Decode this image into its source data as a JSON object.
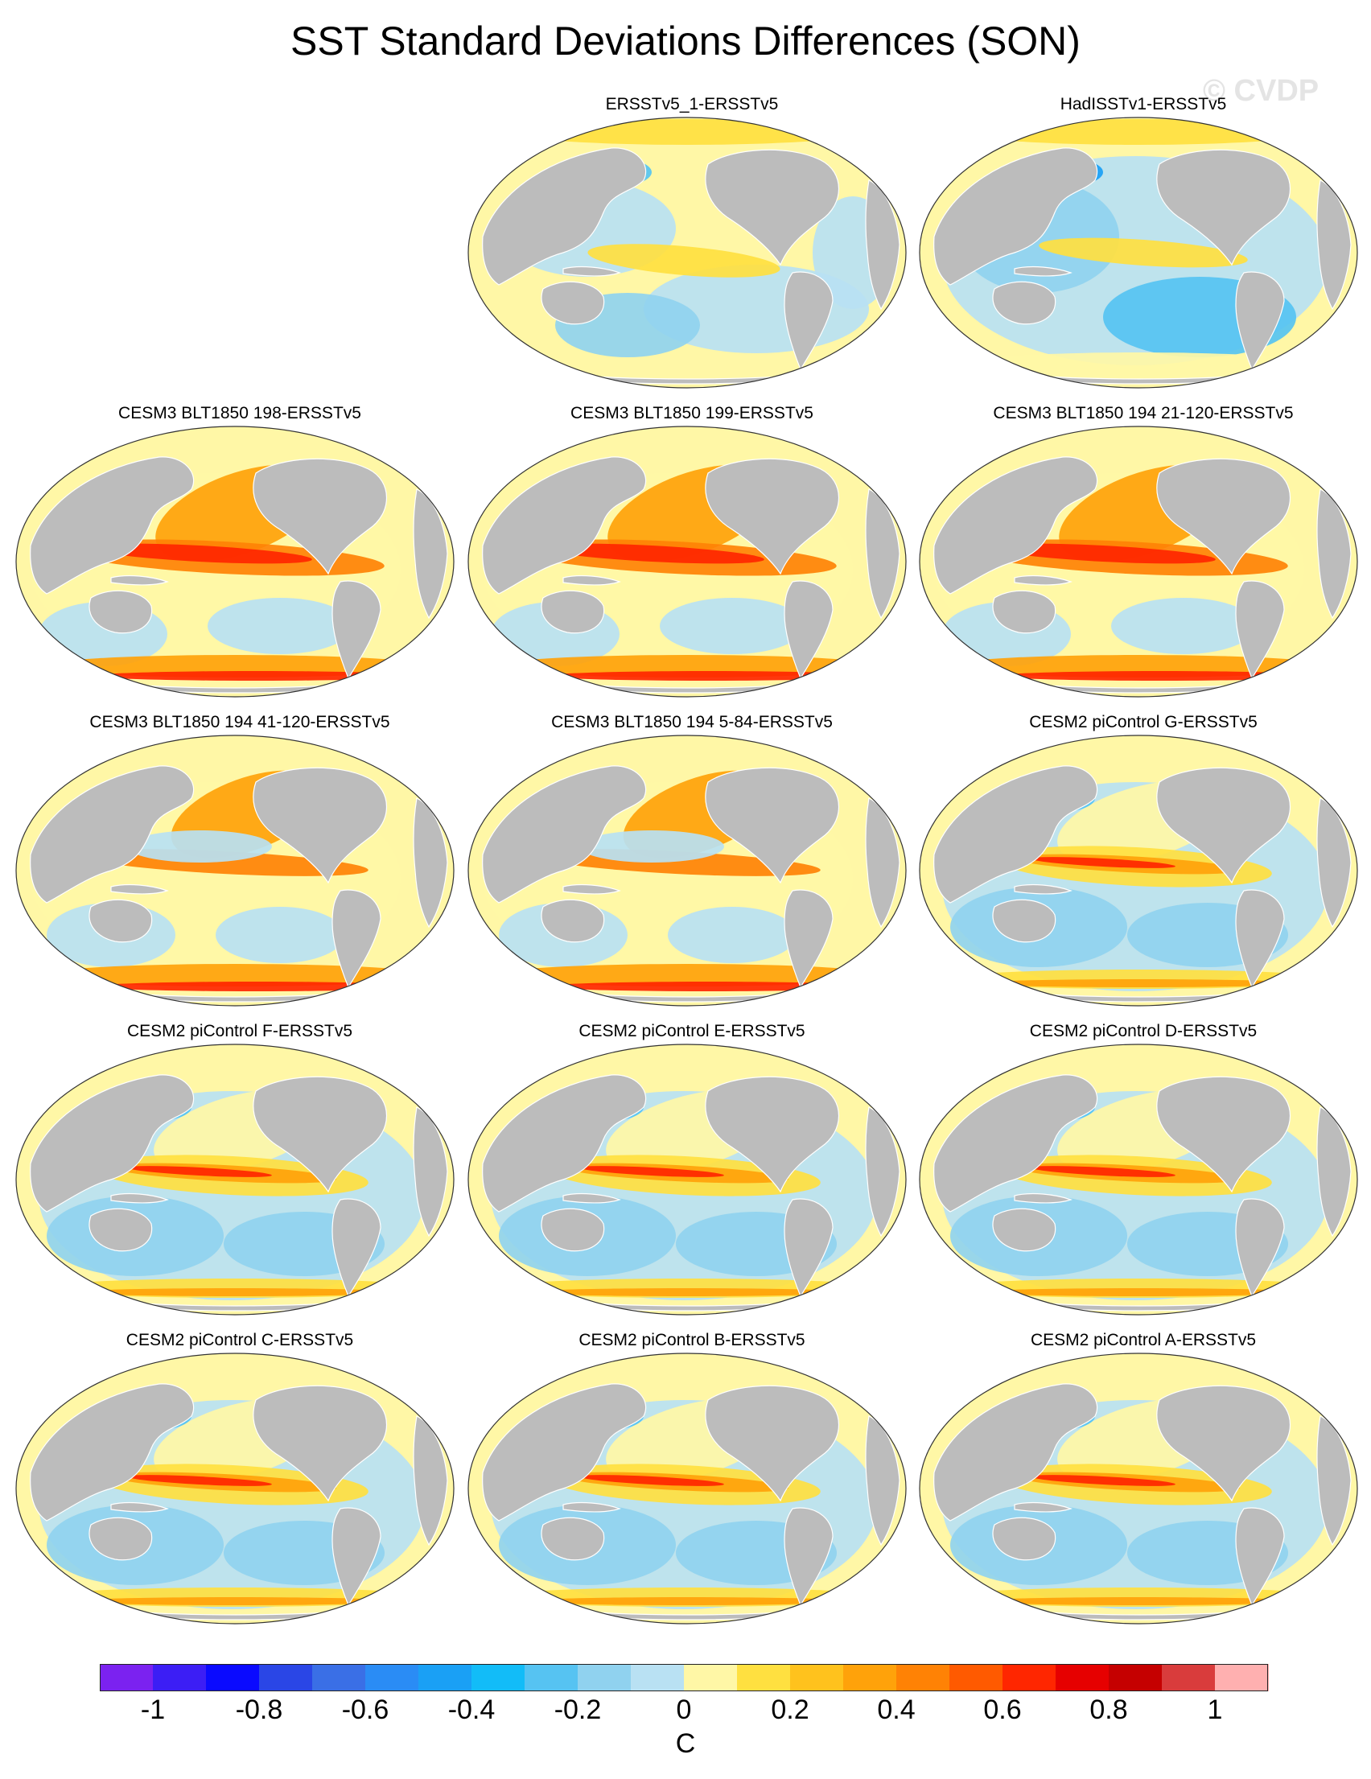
{
  "title": "SST Standard Deviations Differences (SON)",
  "watermark": "© CVDP",
  "panels": [
    {
      "label": "ERSSTv5_1-ERSSTv5",
      "row": 0,
      "col": 1,
      "pattern": "obs-yellowish"
    },
    {
      "label": "HadISSTv1-ERSSTv5",
      "row": 0,
      "col": 2,
      "pattern": "obs-blue"
    },
    {
      "label": "CESM3 BLT1850 198-ERSSTv5",
      "row": 1,
      "col": 0,
      "pattern": "model-strong"
    },
    {
      "label": "CESM3 BLT1850 199-ERSSTv5",
      "row": 1,
      "col": 1,
      "pattern": "model-strong"
    },
    {
      "label": "CESM3 BLT1850 194 21-120-ERSSTv5",
      "row": 1,
      "col": 2,
      "pattern": "model-strong"
    },
    {
      "label": "CESM3 BLT1850 194 41-120-ERSSTv5",
      "row": 2,
      "col": 0,
      "pattern": "model-medium"
    },
    {
      "label": "CESM3 BLT1850 194 5-84-ERSSTv5",
      "row": 2,
      "col": 1,
      "pattern": "model-medium"
    },
    {
      "label": "CESM2 piControl G-ERSSTv5",
      "row": 2,
      "col": 2,
      "pattern": "model-cesm2"
    },
    {
      "label": "CESM2 piControl F-ERSSTv5",
      "row": 3,
      "col": 0,
      "pattern": "model-cesm2"
    },
    {
      "label": "CESM2 piControl E-ERSSTv5",
      "row": 3,
      "col": 1,
      "pattern": "model-cesm2"
    },
    {
      "label": "CESM2 piControl D-ERSSTv5",
      "row": 3,
      "col": 2,
      "pattern": "model-cesm2"
    },
    {
      "label": "CESM2 piControl C-ERSSTv5",
      "row": 4,
      "col": 0,
      "pattern": "model-cesm2"
    },
    {
      "label": "CESM2 piControl B-ERSSTv5",
      "row": 4,
      "col": 1,
      "pattern": "model-cesm2"
    },
    {
      "label": "CESM2 piControl A-ERSSTv5",
      "row": 4,
      "col": 2,
      "pattern": "model-cesm2"
    }
  ],
  "colorbar": {
    "colors": [
      "#7b22f0",
      "#3c1ef5",
      "#0a0aff",
      "#2a46e6",
      "#3a6fe6",
      "#2a8cf5",
      "#1aa0f5",
      "#12bcf8",
      "#56c3f2",
      "#90d2ef",
      "#b9e1f3",
      "#fff7a6",
      "#ffe040",
      "#ffc21d",
      "#ffa20a",
      "#ff8205",
      "#ff5a00",
      "#ff2600",
      "#e60000",
      "#c50000",
      "#d93c3c",
      "#ffb0b0"
    ],
    "tick_labels": [
      "-1",
      "-0.8",
      "-0.6",
      "-0.4",
      "-0.2",
      "0",
      "0.2",
      "0.4",
      "0.6",
      "0.8",
      "1"
    ],
    "unit": "C"
  },
  "land_color": "#bcbcbc",
  "ocean_base_color": "#fff7a6"
}
